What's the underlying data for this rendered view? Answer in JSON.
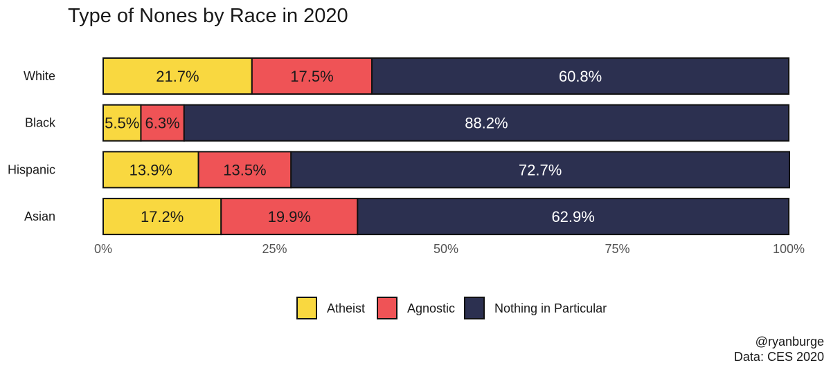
{
  "chart_data": {
    "type": "bar",
    "orientation": "horizontal",
    "stacked": true,
    "title": "Type of Nones by Race in 2020",
    "categories": [
      "White",
      "Black",
      "Hispanic",
      "Asian"
    ],
    "series": [
      {
        "name": "Atheist",
        "color": "#f9d840",
        "label_color": "#1a1a1a",
        "values": [
          21.7,
          5.5,
          13.9,
          17.2
        ]
      },
      {
        "name": "Agnostic",
        "color": "#ef5356",
        "label_color": "#1a1a1a",
        "values": [
          17.5,
          6.3,
          13.5,
          19.9
        ]
      },
      {
        "name": "Nothing in Particular",
        "color": "#2c3050",
        "label_color": "#ffffff",
        "values": [
          60.8,
          88.2,
          72.7,
          62.9
        ]
      }
    ],
    "data_label_suffix": "%",
    "xlim": [
      0,
      100
    ],
    "x_ticks": [
      0,
      25,
      50,
      75,
      100
    ],
    "x_tick_labels": [
      "0%",
      "25%",
      "50%",
      "75%",
      "100%"
    ],
    "grid": false,
    "legend_position": "bottom"
  },
  "caption": {
    "line1": "@ryanburge",
    "line2": "Data: CES 2020"
  }
}
